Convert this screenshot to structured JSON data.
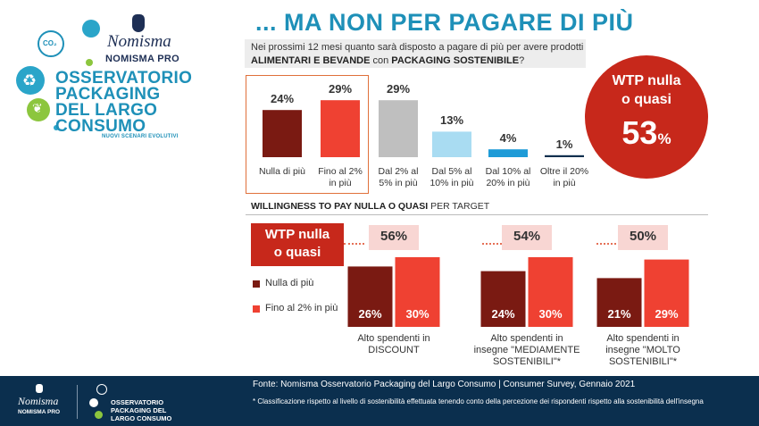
{
  "logo": {
    "brand": "Nomisma",
    "brand_sub": "NOMISMA PRO",
    "bubble_label": "CO₂",
    "title_lines": [
      "OSSERVATORIO",
      "PACKAGING",
      "DEL LARGO",
      "CONSUMO"
    ],
    "tagline": "NUOVI SCENARI EVOLUTIVI",
    "accent_color": "#1e90b8",
    "icons": [
      "co2-bubble-icon",
      "leaf-bubble-icon",
      "recycle-icon",
      "leaf-hand-icon"
    ]
  },
  "title": "... MA NON PER PAGARE DI PIÙ",
  "question": {
    "part1": "Nei prossimi 12 mesi quanto sarà disposto a pagare di più per avere prodotti ",
    "bold1": "ALIMENTARI E BEVANDE",
    "part2": " con ",
    "bold2": "PACKAGING SOSTENIBILE",
    "part3": "?"
  },
  "wtp_summary": {
    "label_line1": "WTP nulla",
    "label_line2": "o quasi",
    "value": "53",
    "unit": "%",
    "color": "#c7281b"
  },
  "section2": {
    "heading_bold": "WILLINGNESS TO PAY NULLA O QUASI",
    "heading_rest": " PER TARGET",
    "box_line1": "WTP nulla",
    "box_line2": "o quasi"
  },
  "footer": {
    "brand": "Nomisma",
    "brand_sub": "NOMISMA PRO",
    "logo_lines": [
      "OSSERVATORIO",
      "PACKAGING DEL",
      "LARGO CONSUMO"
    ],
    "source": "Fonte: Nomisma Osservatorio Packaging del Largo Consumo | Consumer Survey, Gennaio 2021",
    "footnote": "* Classificazione rispetto al livello di sostenibilità effettuata tenendo conto della percezione dei rispondenti rispetto alla sostenibilità dell'insegna",
    "background": "#0b2f4e"
  },
  "chart_data": [
    {
      "type": "bar",
      "categories": [
        [
          "Nulla di più"
        ],
        [
          "Fino al 2%",
          "in più"
        ],
        [
          "Dal 2% al",
          "5% in più"
        ],
        [
          "Dal 5% al",
          "10% in più"
        ],
        [
          "Dal 10% al",
          "20% in più"
        ],
        [
          "Oltre il 20%",
          "in più"
        ]
      ],
      "values": [
        24,
        29,
        29,
        13,
        4,
        1
      ],
      "value_labels": [
        "24%",
        "29%",
        "29%",
        "13%",
        "4%",
        "1%"
      ],
      "colors": [
        "#7a1a12",
        "#ef4132",
        "#bfbfbf",
        "#a9dcf2",
        "#1e9bd7",
        "#0b2f4e"
      ],
      "highlighted_categories": [
        0,
        1
      ],
      "ylim": [
        0,
        30
      ]
    },
    {
      "type": "bar",
      "categories": [
        [
          "Alto spendenti in",
          "DISCOUNT"
        ],
        [
          "Alto spendenti in",
          "insegne \"MEDIAMENTE",
          "SOSTENIBILI\"*"
        ],
        [
          "Alto spendenti in",
          "insegne \"MOLTO",
          "SOSTENIBILI\"*"
        ]
      ],
      "totals": [
        "56%",
        "54%",
        "50%"
      ],
      "series": [
        {
          "name": "Nulla di più",
          "values": [
            26,
            24,
            21
          ],
          "labels": [
            "26%",
            "24%",
            "21%"
          ],
          "color": "#7a1a12"
        },
        {
          "name": "Fino al 2% in più",
          "values": [
            30,
            30,
            29
          ],
          "labels": [
            "30%",
            "30%",
            "29%"
          ],
          "color": "#ef4132"
        }
      ],
      "legend": "left",
      "ylim": [
        0,
        30
      ]
    }
  ]
}
